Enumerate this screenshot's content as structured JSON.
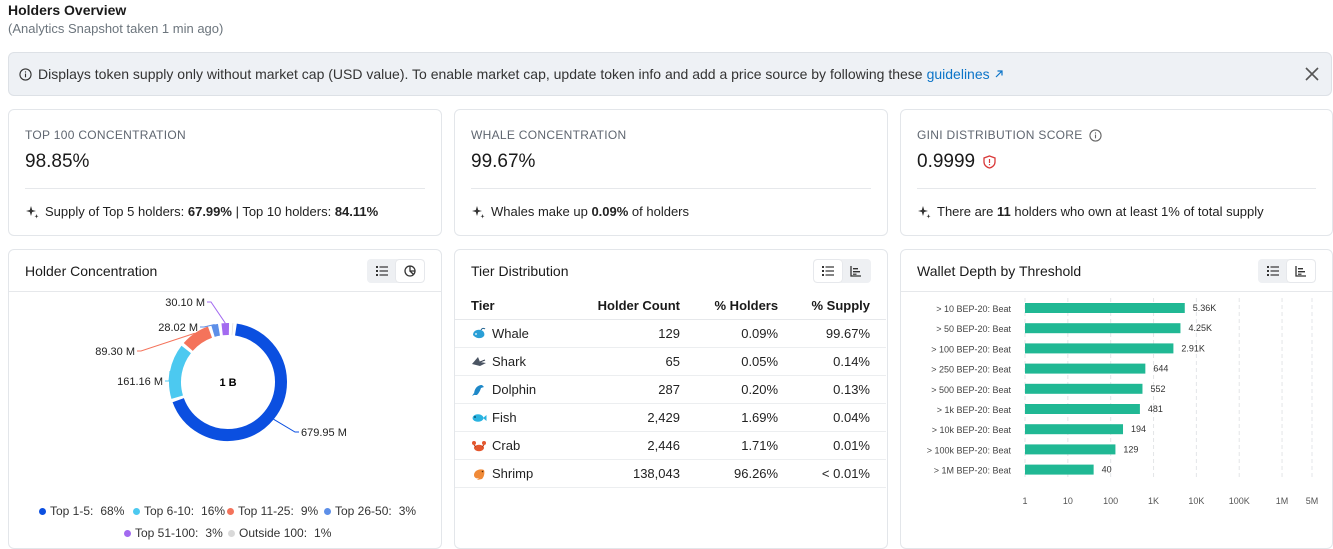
{
  "header": {
    "title": "Holders Overview",
    "subtitle": "(Analytics Snapshot taken 1 min ago)"
  },
  "alert": {
    "text": "Displays token supply only without market cap (USD value). To enable market cap, update token info and add a price source by following these",
    "link_label": "guidelines",
    "link_icon": "external-arrow-icon",
    "close_icon": "close-icon"
  },
  "stats": [
    {
      "label": "TOP 100 CONCENTRATION",
      "value": "98.85%",
      "note_prefix": "Supply of Top 5 holders: ",
      "note_bold1": "67.99%",
      "note_mid": " | Top 10 holders: ",
      "note_bold2": "84.11%"
    },
    {
      "label": "WHALE CONCENTRATION",
      "value": "99.67%",
      "note_prefix": "Whales make up ",
      "note_bold1": "0.09%",
      "note_mid": " of holders"
    },
    {
      "label": "GINI DISTRIBUTION SCORE",
      "value": "0.9999",
      "note_prefix": "There are ",
      "note_bold1": "11",
      "note_mid": " holders who own at least 1% of total supply"
    }
  ],
  "holder_concentration": {
    "title": "Holder Concentration",
    "center_label": "1 B",
    "slice_labels": [
      "679.95 M",
      "161.16 M",
      "89.30 M",
      "28.02 M",
      "30.10 M"
    ],
    "legend": [
      {
        "name": "Top 1-5:",
        "pct": "68%",
        "color": "#0b4fe0"
      },
      {
        "name": "Top 6-10:",
        "pct": "16%",
        "color": "#4cc9f0"
      },
      {
        "name": "Top 11-25:",
        "pct": "9%",
        "color": "#f4735b"
      },
      {
        "name": "Top 26-50:",
        "pct": "3%",
        "color": "#5d8fe8"
      },
      {
        "name": "Top 51-100:",
        "pct": "3%",
        "color": "#a36af0"
      },
      {
        "name": "Outside 100:",
        "pct": "1%",
        "color": "#d9d9d9"
      }
    ]
  },
  "tier_distribution": {
    "title": "Tier Distribution",
    "columns": [
      "Tier",
      "Holder Count",
      "% Holders",
      "% Supply"
    ],
    "rows": [
      {
        "tier": "Whale",
        "icon": "whale-icon",
        "count": "129",
        "holders": "0.09%",
        "supply": "99.67%"
      },
      {
        "tier": "Shark",
        "icon": "shark-icon",
        "count": "65",
        "holders": "0.05%",
        "supply": "0.14%"
      },
      {
        "tier": "Dolphin",
        "icon": "dolphin-icon",
        "count": "287",
        "holders": "0.20%",
        "supply": "0.13%"
      },
      {
        "tier": "Fish",
        "icon": "fish-icon",
        "count": "2,429",
        "holders": "1.69%",
        "supply": "0.04%"
      },
      {
        "tier": "Crab",
        "icon": "crab-icon",
        "count": "2,446",
        "holders": "1.71%",
        "supply": "0.01%"
      },
      {
        "tier": "Shrimp",
        "icon": "shrimp-icon",
        "count": "138,043",
        "holders": "96.26%",
        "supply": "< 0.01%"
      }
    ]
  },
  "chart_data": [
    {
      "type": "pie",
      "categories": [
        "Top 1-5",
        "Top 6-10",
        "Top 11-25",
        "Top 26-50",
        "Top 51-100",
        "Outside 100"
      ],
      "values": [
        679.95,
        161.16,
        89.3,
        28.02,
        30.1,
        11.47
      ],
      "value_labels": [
        "679.95 M",
        "161.16 M",
        "89.30 M",
        "28.02 M",
        "30.10 M",
        ""
      ],
      "colors": [
        "#0b4fe0",
        "#4cc9f0",
        "#f4735b",
        "#5d8fe8",
        "#a36af0",
        "#d9d9d9"
      ],
      "center": "1 B",
      "title": "Holder Concentration",
      "legend": "bottom"
    },
    {
      "type": "bar",
      "orientation": "horizontal",
      "title": "Wallet Depth by Threshold",
      "categories": [
        "> 10 BEP-20: Beat",
        "> 50 BEP-20: Beat",
        "> 100 BEP-20: Beat",
        "> 250 BEP-20: Beat",
        "> 500 BEP-20: Beat",
        "> 1k BEP-20: Beat",
        "> 10k BEP-20: Beat",
        "> 100k BEP-20: Beat",
        "> 1M BEP-20: Beat"
      ],
      "values": [
        5360,
        4250,
        2910,
        644,
        552,
        481,
        194,
        129,
        40
      ],
      "value_labels": [
        "5.36K",
        "4.25K",
        "2.91K",
        "644",
        "552",
        "481",
        "194",
        "129",
        "40"
      ],
      "xscale": "log",
      "xticks": [
        "1",
        "10",
        "100",
        "1K",
        "10K",
        "100K",
        "1M",
        "5M"
      ],
      "color": "#20b894",
      "grid": true
    }
  ]
}
